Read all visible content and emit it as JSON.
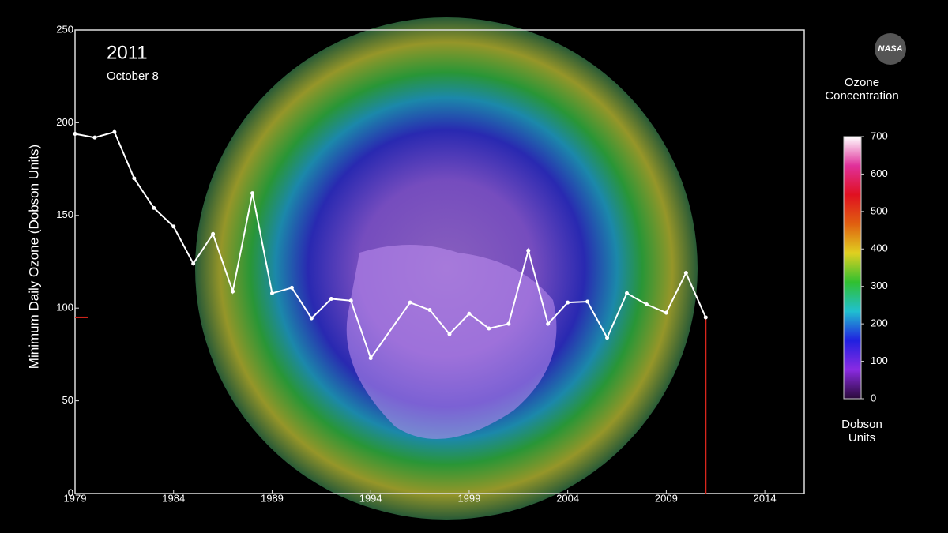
{
  "chart_data": {
    "type": "line",
    "title": "2011",
    "subtitle": "October 8",
    "y_label": "Minimum Daily Ozone (Dobson Units)",
    "x": [
      1979,
      1980,
      1981,
      1982,
      1983,
      1984,
      1985,
      1986,
      1987,
      1988,
      1989,
      1990,
      1991,
      1992,
      1993,
      1994,
      1996,
      1997,
      1998,
      1999,
      2000,
      2001,
      2002,
      2003,
      2004,
      2005,
      2006,
      2007,
      2008,
      2009,
      2010,
      2011
    ],
    "series": [
      {
        "color": "#ffffff",
        "values": [
          194,
          192,
          195,
          170,
          154,
          144,
          124,
          140,
          109,
          162,
          108,
          111,
          94.5,
          105,
          104,
          73,
          103,
          99,
          86,
          97,
          89,
          91.5,
          131,
          91.5,
          103,
          103.5,
          84,
          108,
          102,
          97.5,
          119,
          95
        ]
      }
    ],
    "marker_color": "#d9261c",
    "xlim": [
      1979,
      2016
    ],
    "xticks": [
      1979,
      1984,
      1989,
      1994,
      1999,
      2004,
      2009,
      2014
    ],
    "ylim": [
      0,
      250
    ],
    "yticks": [
      0,
      50,
      100,
      150,
      200,
      250
    ]
  },
  "colorbar": {
    "title": "Ozone Concentration",
    "label": "Dobson Units",
    "lim": [
      0,
      700
    ],
    "ticks": [
      0,
      100,
      200,
      300,
      400,
      500,
      600,
      700
    ],
    "colors": [
      "#2a0a3a",
      "#8a2be2",
      "#2020e0",
      "#20c0d0",
      "#30c030",
      "#e0d020",
      "#e06010",
      "#e01020",
      "#e0309a",
      "#ffffff"
    ]
  },
  "logo": "NASA"
}
